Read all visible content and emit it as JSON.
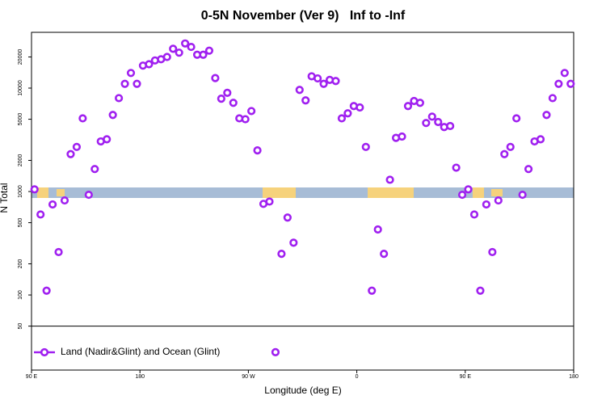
{
  "chart_data": {
    "type": "scatter",
    "title": "0-5N November (Ver 9)   Inf to -Inf",
    "xlabel": "Longitude (deg E)",
    "ylabel": "N Total",
    "log_y": true,
    "legend_position": "lower left",
    "xlim": [
      90,
      540
    ],
    "ylim": [
      18.8,
      34600
    ],
    "xticks": [
      {
        "value": 90,
        "label": "90 E"
      },
      180,
      {
        "value": 270,
        "label": "90 W"
      },
      {
        "value": 360,
        "label": "0"
      },
      {
        "value": 450,
        "label": "90 E"
      },
      {
        "value": 540,
        "label": "180"
      }
    ],
    "yticks": [
      50,
      100,
      200,
      500,
      1000,
      2000,
      5000,
      10000,
      20000
    ],
    "series": [
      {
        "name": "Land (Nadir&Glint) and Ocean (Glint)",
        "color": "#a020f0",
        "x": [
          92.5,
          97.5,
          102.5,
          107.5,
          112.5,
          117.5,
          122.5,
          127.5,
          132.5,
          137.5,
          142.5,
          147.5,
          152.5,
          157.5,
          162.5,
          167.5,
          172.5,
          177.5,
          182.5,
          187.5,
          192.5,
          197.5,
          202.5,
          207.5,
          212.5,
          217.5,
          222.5,
          227.5,
          232.5,
          237.5,
          242.5,
          247.5,
          252.5,
          257.5,
          262.5,
          267.5,
          272.5,
          277.5,
          282.5,
          287.5,
          292.5,
          297.5,
          302.5,
          307.5,
          312.5,
          317.5,
          322.5,
          327.5,
          332.5,
          337.5,
          342.5,
          347.5,
          352.5,
          357.5,
          362.5,
          367.5,
          372.5,
          377.5,
          382.5,
          387.5,
          392.5,
          397.5,
          402.5,
          407.5,
          412.5,
          417.5,
          422.5,
          427.5,
          432.5,
          437.5,
          442.5,
          447.5,
          452.5,
          457.5,
          462.5,
          467.5,
          472.5,
          477.5,
          482.5,
          487.5,
          492.5,
          497.5,
          502.5,
          507.5,
          512.5,
          517.5,
          522.5,
          527.5,
          532.5,
          537.5
        ],
        "values": [
          1050,
          600,
          110,
          750,
          260,
          820,
          2300,
          2700,
          5100,
          930,
          1650,
          3050,
          3200,
          5500,
          8000,
          11000,
          14000,
          11000,
          16500,
          17000,
          18500,
          19000,
          20000,
          24000,
          22000,
          27000,
          25000,
          21000,
          21000,
          23000,
          12500,
          7900,
          9000,
          7200,
          5100,
          5000,
          6000,
          2500,
          760,
          800,
          28,
          250,
          560,
          320,
          9600,
          7600,
          13000,
          12400,
          11000,
          12000,
          11700,
          5100,
          5700,
          6700,
          6500,
          2700,
          110,
          430,
          250,
          1300,
          3300,
          3400,
          6700,
          7500,
          7200,
          4600,
          5300,
          4700,
          4200,
          4300,
          1700,
          930,
          1050,
          600,
          110,
          750,
          260,
          820,
          2300,
          2700,
          5100,
          930,
          1650,
          3050,
          3200,
          5500,
          8000,
          11000,
          14000,
          11000
        ]
      }
    ]
  }
}
